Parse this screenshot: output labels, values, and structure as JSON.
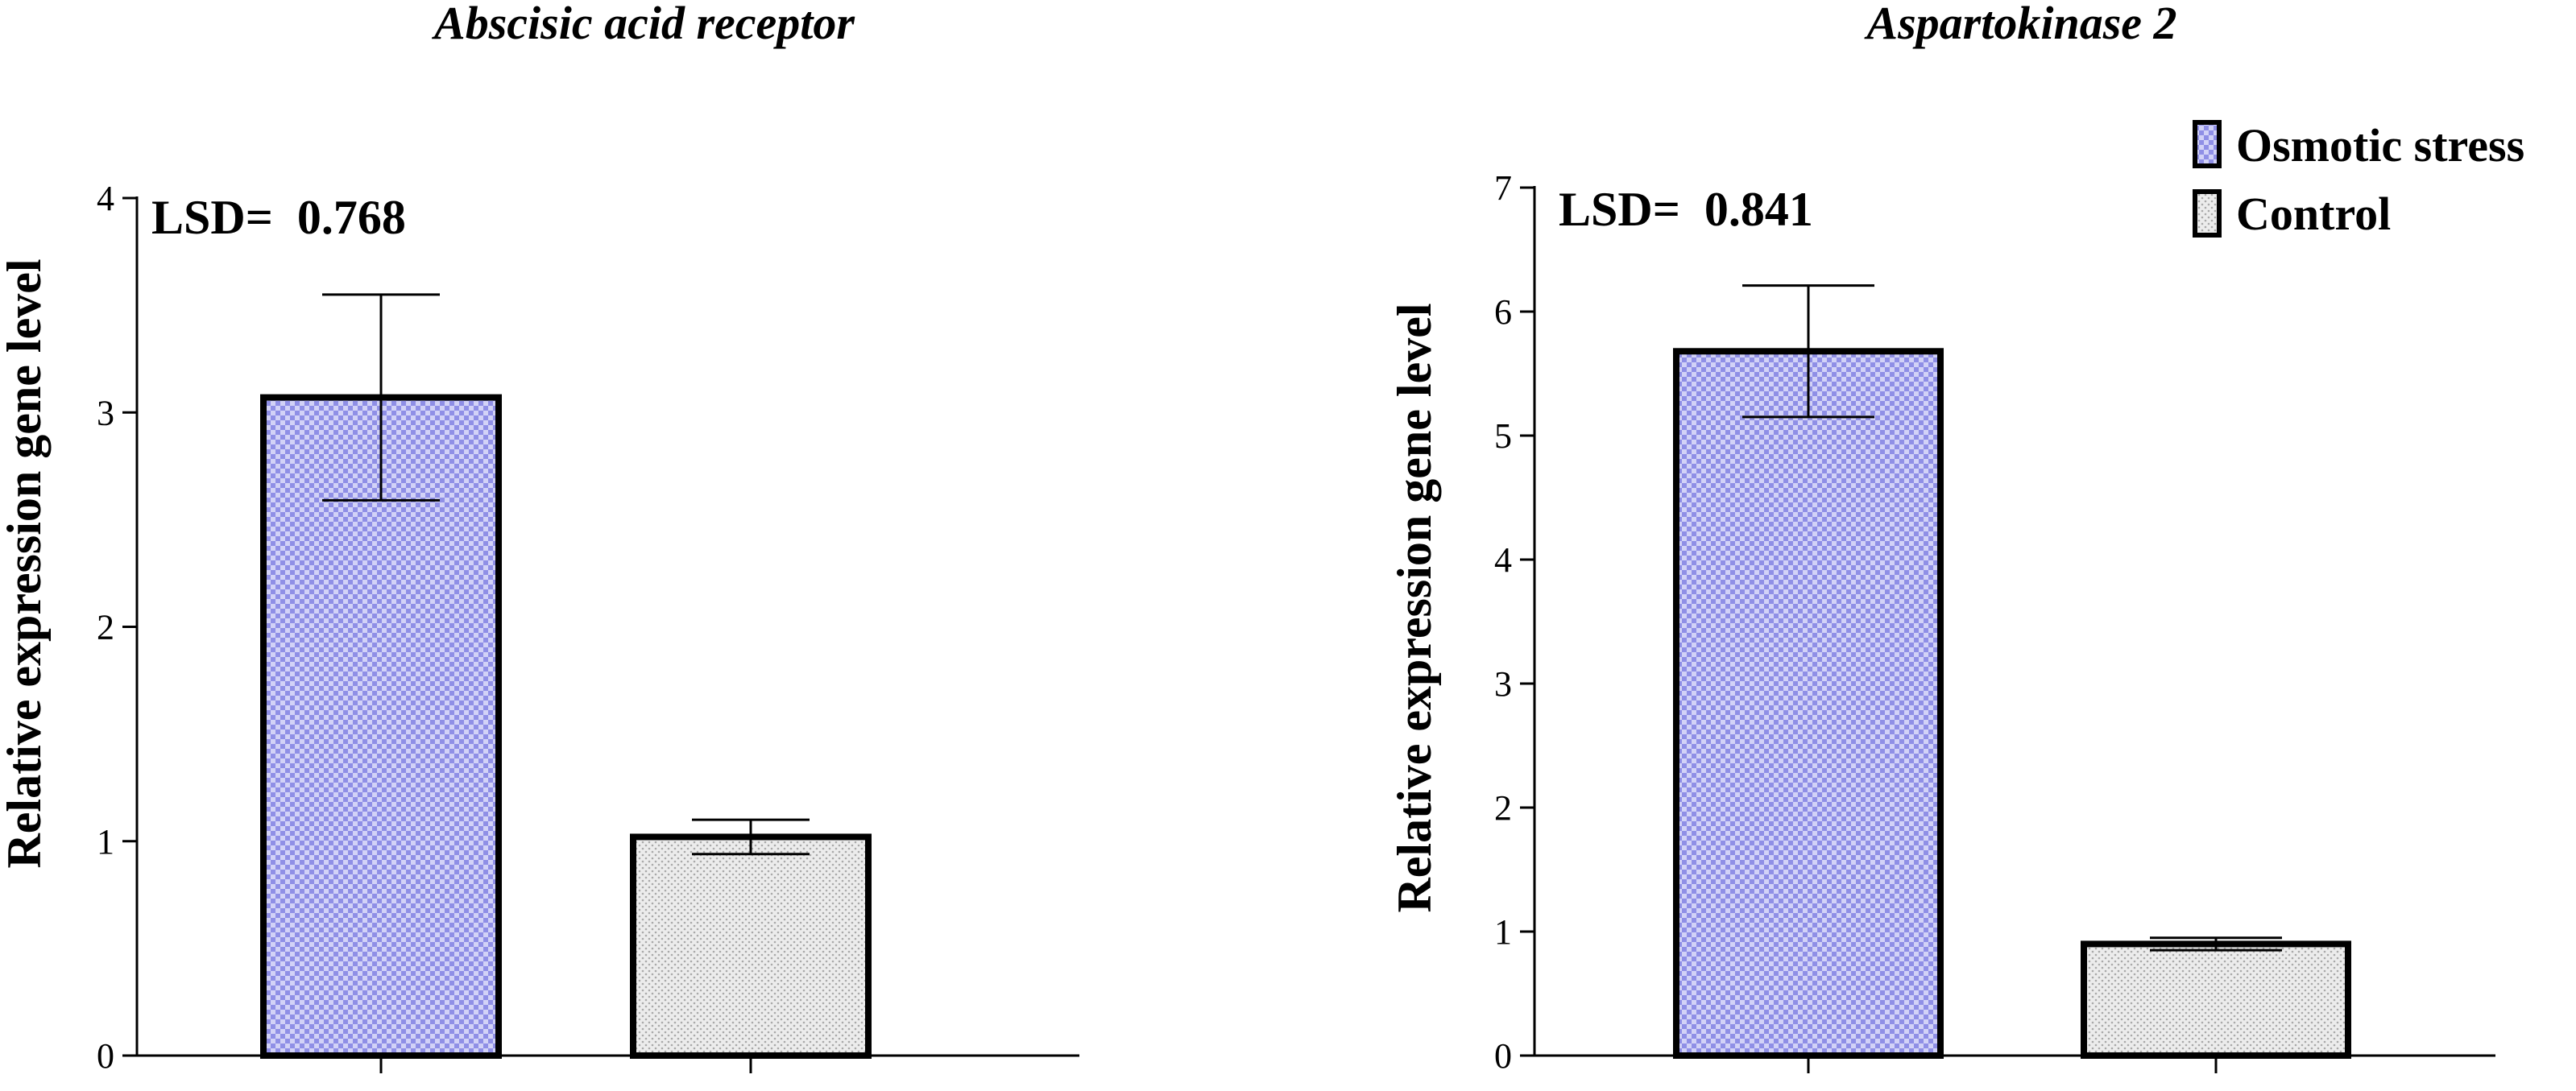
{
  "chart_data": [
    {
      "type": "bar",
      "title": "Abscisic acid receptor",
      "xlabel": "",
      "ylabel": "Relative expression gene level",
      "ylim": [
        0,
        4
      ],
      "yticks": [
        "0",
        "1",
        "2",
        "3",
        "4"
      ],
      "annotation": "LSD=  0.768",
      "categories": [
        "Osmotic stress",
        "Control"
      ],
      "values": [
        3.07,
        1.02
      ],
      "errors": [
        0.48,
        0.08
      ],
      "grid": false
    },
    {
      "type": "bar",
      "title": "Aspartokinase 2",
      "xlabel": "",
      "ylabel": "Relative expression gene level",
      "ylim": [
        0,
        7
      ],
      "yticks": [
        "0",
        "1",
        "2",
        "3",
        "4",
        "5",
        "6",
        "7"
      ],
      "annotation": "LSD=  0.841",
      "categories": [
        "Osmotic stress",
        "Control"
      ],
      "values": [
        5.68,
        0.9
      ],
      "errors": [
        0.53,
        0.05
      ],
      "grid": false
    }
  ],
  "legend": {
    "position": "top-right",
    "items": [
      {
        "label": "Osmotic stress",
        "pattern": "checker",
        "color": "#8f8fe6"
      },
      {
        "label": "Control",
        "pattern": "dots",
        "color": "#d6d6d6"
      }
    ]
  },
  "colors": {
    "stress_light": "#d2d2f7",
    "stress_dark": "#8f8fe6",
    "control_light": "#ececec",
    "control_dark": "#a9a9a9",
    "outline": "#000000"
  }
}
